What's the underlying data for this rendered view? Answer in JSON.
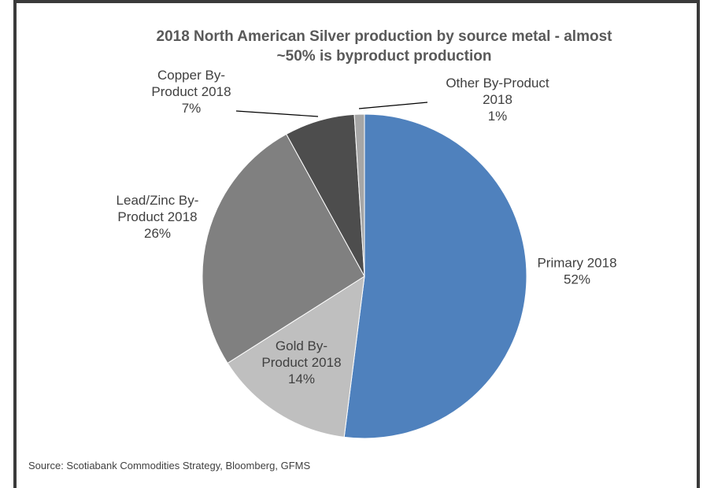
{
  "chart_data": {
    "type": "pie",
    "title_lines": [
      "2018 North American Silver production by source metal - almost",
      "~50% is byproduct production"
    ],
    "slices": [
      {
        "label_lines": [
          "Primary 2018",
          "52%"
        ],
        "value": 52,
        "color": "#4f81bd"
      },
      {
        "label_lines": [
          "Gold By-",
          "Product 2018",
          "14%"
        ],
        "value": 14,
        "color": "#bfbfbf"
      },
      {
        "label_lines": [
          "Lead/Zinc By-",
          "Product 2018",
          "26%"
        ],
        "value": 26,
        "color": "#808080"
      },
      {
        "label_lines": [
          "Copper By-",
          "Product 2018",
          "7%"
        ],
        "value": 7,
        "color": "#4d4d4d"
      },
      {
        "label_lines": [
          "Other By-Product",
          "2018",
          "1%"
        ],
        "value": 1,
        "color": "#a6a6a6"
      }
    ],
    "source": "Source: Scotiabank Commodities Strategy, Bloomberg, GFMS"
  }
}
